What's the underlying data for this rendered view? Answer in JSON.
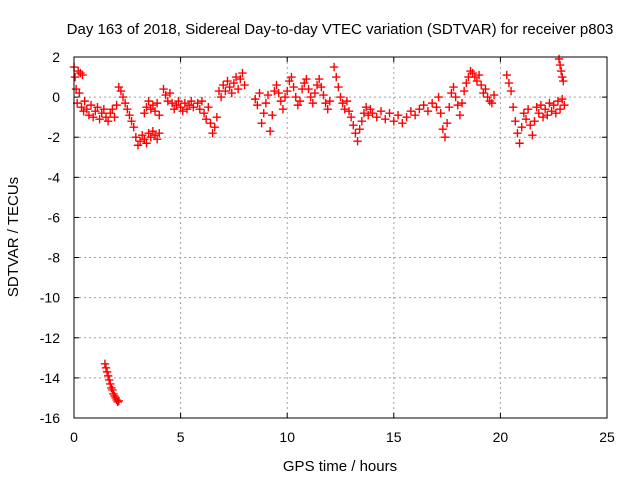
{
  "chart_data": {
    "type": "scatter",
    "title": "Day 163 of 2018, Sidereal Day-to-day VTEC variation (SDTVAR) for receiver p803",
    "xlabel": "GPS time / hours",
    "ylabel": "SDTVAR / TECUs",
    "xlim": [
      0,
      25
    ],
    "ylim": [
      -16,
      2
    ],
    "xticks": [
      0,
      5,
      10,
      15,
      20,
      25
    ],
    "yticks": [
      2,
      0,
      -2,
      -4,
      -6,
      -8,
      -10,
      -12,
      -14,
      -16
    ],
    "grid": true,
    "marker": "plus",
    "series": [
      {
        "name": "SDTVAR",
        "color": "#ff0000",
        "points": [
          [
            0.0,
            1.5
          ],
          [
            0.05,
            1.0
          ],
          [
            0.1,
            0.4
          ],
          [
            0.15,
            -0.3
          ],
          [
            0.2,
            1.3
          ],
          [
            0.25,
            0.2
          ],
          [
            0.3,
            1.2
          ],
          [
            0.35,
            -0.5
          ],
          [
            0.4,
            1.1
          ],
          [
            0.45,
            -0.7
          ],
          [
            0.5,
            -0.2
          ],
          [
            0.6,
            -0.6
          ],
          [
            0.7,
            -0.9
          ],
          [
            0.8,
            -0.4
          ],
          [
            0.9,
            -1.0
          ],
          [
            1.0,
            -0.7
          ],
          [
            1.1,
            -0.5
          ],
          [
            1.2,
            -1.1
          ],
          [
            1.3,
            -0.8
          ],
          [
            1.4,
            -0.6
          ],
          [
            1.5,
            -1.0
          ],
          [
            1.6,
            -1.2
          ],
          [
            1.7,
            -0.8
          ],
          [
            1.8,
            -0.6
          ],
          [
            1.9,
            -1.0
          ],
          [
            2.0,
            -0.4
          ],
          [
            2.1,
            0.5
          ],
          [
            2.2,
            0.3
          ],
          [
            2.3,
            0.0
          ],
          [
            2.4,
            -0.3
          ],
          [
            2.5,
            -0.6
          ],
          [
            2.6,
            -0.9
          ],
          [
            2.7,
            -1.2
          ],
          [
            2.8,
            -1.5
          ],
          [
            2.9,
            -2.0
          ],
          [
            3.0,
            -2.4
          ],
          [
            3.1,
            -2.2
          ],
          [
            3.2,
            -1.9
          ],
          [
            3.3,
            -2.1
          ],
          [
            3.4,
            -2.3
          ],
          [
            3.5,
            -1.8
          ],
          [
            3.6,
            -2.0
          ],
          [
            3.7,
            -1.7
          ],
          [
            3.8,
            -1.9
          ],
          [
            3.9,
            -2.1
          ],
          [
            4.0,
            -1.8
          ],
          [
            3.3,
            -0.8
          ],
          [
            3.4,
            -0.5
          ],
          [
            3.5,
            -0.2
          ],
          [
            3.6,
            -0.6
          ],
          [
            3.7,
            -0.4
          ],
          [
            3.8,
            -0.7
          ],
          [
            3.9,
            -0.3
          ],
          [
            4.0,
            -0.9
          ],
          [
            4.2,
            0.4
          ],
          [
            4.3,
            0.1
          ],
          [
            4.4,
            -0.2
          ],
          [
            4.5,
            0.2
          ],
          [
            4.6,
            -0.3
          ],
          [
            4.7,
            -0.6
          ],
          [
            4.8,
            -0.4
          ],
          [
            4.9,
            -0.2
          ],
          [
            5.0,
            -0.5
          ],
          [
            5.1,
            -0.7
          ],
          [
            5.2,
            -0.3
          ],
          [
            5.3,
            -0.6
          ],
          [
            5.4,
            -0.4
          ],
          [
            5.5,
            -0.2
          ],
          [
            5.6,
            -0.5
          ],
          [
            5.8,
            -0.3
          ],
          [
            5.9,
            -0.6
          ],
          [
            6.0,
            -0.2
          ],
          [
            6.1,
            -0.8
          ],
          [
            6.2,
            -1.1
          ],
          [
            6.3,
            -0.5
          ],
          [
            6.4,
            -1.3
          ],
          [
            6.5,
            -1.8
          ],
          [
            6.6,
            -1.5
          ],
          [
            6.7,
            -1.0
          ],
          [
            6.8,
            0.3
          ],
          [
            6.9,
            0.0
          ],
          [
            7.0,
            0.6
          ],
          [
            7.1,
            0.3
          ],
          [
            7.2,
            0.8
          ],
          [
            7.3,
            0.5
          ],
          [
            7.4,
            0.2
          ],
          [
            7.5,
            0.7
          ],
          [
            7.6,
            1.0
          ],
          [
            7.7,
            0.4
          ],
          [
            7.8,
            0.9
          ],
          [
            7.9,
            1.2
          ],
          [
            8.0,
            0.6
          ],
          [
            8.5,
            -0.1
          ],
          [
            8.6,
            -0.4
          ],
          [
            8.7,
            0.2
          ],
          [
            8.8,
            -1.3
          ],
          [
            8.9,
            -0.8
          ],
          [
            9.0,
            -0.3
          ],
          [
            9.1,
            0.1
          ],
          [
            9.2,
            -1.7
          ],
          [
            9.3,
            -0.9
          ],
          [
            9.4,
            0.3
          ],
          [
            9.5,
            0.6
          ],
          [
            9.6,
            0.2
          ],
          [
            9.7,
            -0.2
          ],
          [
            9.8,
            -0.6
          ],
          [
            9.9,
            0.0
          ],
          [
            10.0,
            0.3
          ],
          [
            10.1,
            0.8
          ],
          [
            10.2,
            1.0
          ],
          [
            10.3,
            0.5
          ],
          [
            10.4,
            0.0
          ],
          [
            10.5,
            -0.4
          ],
          [
            10.6,
            -0.2
          ],
          [
            10.7,
            0.4
          ],
          [
            10.8,
            0.7
          ],
          [
            10.9,
            0.9
          ],
          [
            11.0,
            0.4
          ],
          [
            11.1,
            0.0
          ],
          [
            11.2,
            -0.3
          ],
          [
            11.3,
            0.2
          ],
          [
            11.4,
            0.6
          ],
          [
            11.5,
            0.9
          ],
          [
            11.6,
            0.5
          ],
          [
            11.7,
            0.1
          ],
          [
            11.8,
            -0.3
          ],
          [
            11.9,
            -0.6
          ],
          [
            12.0,
            -0.2
          ],
          [
            12.2,
            1.5
          ],
          [
            12.3,
            1.0
          ],
          [
            12.4,
            0.5
          ],
          [
            12.5,
            0.0
          ],
          [
            12.6,
            -0.3
          ],
          [
            12.7,
            -0.6
          ],
          [
            12.8,
            -0.2
          ],
          [
            12.9,
            -0.7
          ],
          [
            13.0,
            -1.0
          ],
          [
            13.1,
            -1.4
          ],
          [
            13.2,
            -1.8
          ],
          [
            13.3,
            -2.2
          ],
          [
            13.4,
            -1.6
          ],
          [
            13.5,
            -1.2
          ],
          [
            13.6,
            -0.8
          ],
          [
            13.7,
            -0.5
          ],
          [
            13.8,
            -0.9
          ],
          [
            13.9,
            -0.6
          ],
          [
            14.0,
            -0.8
          ],
          [
            14.2,
            -1.0
          ],
          [
            14.4,
            -0.7
          ],
          [
            14.6,
            -1.1
          ],
          [
            14.8,
            -0.8
          ],
          [
            15.0,
            -1.2
          ],
          [
            15.2,
            -0.9
          ],
          [
            15.4,
            -1.3
          ],
          [
            15.6,
            -1.0
          ],
          [
            15.8,
            -0.7
          ],
          [
            16.0,
            -0.9
          ],
          [
            16.2,
            -0.6
          ],
          [
            16.4,
            -0.4
          ],
          [
            16.6,
            -0.7
          ],
          [
            16.8,
            -0.3
          ],
          [
            17.0,
            -0.5
          ],
          [
            17.1,
            0.0
          ],
          [
            17.2,
            -0.8
          ],
          [
            17.3,
            -1.6
          ],
          [
            17.4,
            -2.0
          ],
          [
            17.5,
            -1.3
          ],
          [
            17.6,
            -0.5
          ],
          [
            17.7,
            0.2
          ],
          [
            17.8,
            0.5
          ],
          [
            17.9,
            0.0
          ],
          [
            18.0,
            -0.4
          ],
          [
            18.1,
            -0.9
          ],
          [
            18.2,
            -0.3
          ],
          [
            18.3,
            0.3
          ],
          [
            18.4,
            0.7
          ],
          [
            18.5,
            1.0
          ],
          [
            18.6,
            1.3
          ],
          [
            18.7,
            1.2
          ],
          [
            18.8,
            1.0
          ],
          [
            18.9,
            0.8
          ],
          [
            19.0,
            1.1
          ],
          [
            19.1,
            0.6
          ],
          [
            19.2,
            0.2
          ],
          [
            19.3,
            0.4
          ],
          [
            19.4,
            0.0
          ],
          [
            19.5,
            -0.2
          ],
          [
            19.6,
            -0.3
          ],
          [
            19.7,
            0.1
          ],
          [
            20.3,
            1.1
          ],
          [
            20.4,
            0.7
          ],
          [
            20.5,
            0.3
          ],
          [
            20.6,
            -0.5
          ],
          [
            20.7,
            -1.2
          ],
          [
            20.8,
            -1.8
          ],
          [
            20.9,
            -2.3
          ],
          [
            21.0,
            -1.5
          ],
          [
            21.1,
            -0.8
          ],
          [
            21.2,
            -1.1
          ],
          [
            21.3,
            -0.6
          ],
          [
            21.4,
            -1.4
          ],
          [
            21.5,
            -1.9
          ],
          [
            21.6,
            -1.2
          ],
          [
            21.7,
            -0.5
          ],
          [
            21.8,
            -0.8
          ],
          [
            21.9,
            -0.4
          ],
          [
            22.0,
            -1.0
          ],
          [
            22.1,
            -0.6
          ],
          [
            22.2,
            -0.9
          ],
          [
            22.3,
            -0.3
          ],
          [
            22.4,
            -0.7
          ],
          [
            22.5,
            -0.4
          ],
          [
            22.6,
            -0.8
          ],
          [
            22.7,
            -0.2
          ],
          [
            22.8,
            -0.6
          ],
          [
            22.9,
            -0.1
          ],
          [
            23.0,
            -0.4
          ],
          [
            22.75,
            1.9
          ],
          [
            22.8,
            1.6
          ],
          [
            22.85,
            1.3
          ],
          [
            22.9,
            1.0
          ],
          [
            22.95,
            0.8
          ],
          [
            1.45,
            -13.3
          ],
          [
            1.5,
            -13.5
          ],
          [
            1.55,
            -13.7
          ],
          [
            1.6,
            -13.9
          ],
          [
            1.65,
            -14.1
          ],
          [
            1.7,
            -14.3
          ],
          [
            1.75,
            -14.5
          ],
          [
            1.8,
            -14.6
          ],
          [
            1.85,
            -14.8
          ],
          [
            1.9,
            -14.9
          ],
          [
            1.95,
            -15.0
          ],
          [
            2.0,
            -15.1
          ],
          [
            2.05,
            -15.2
          ],
          [
            2.1,
            -15.15
          ]
        ]
      }
    ]
  }
}
